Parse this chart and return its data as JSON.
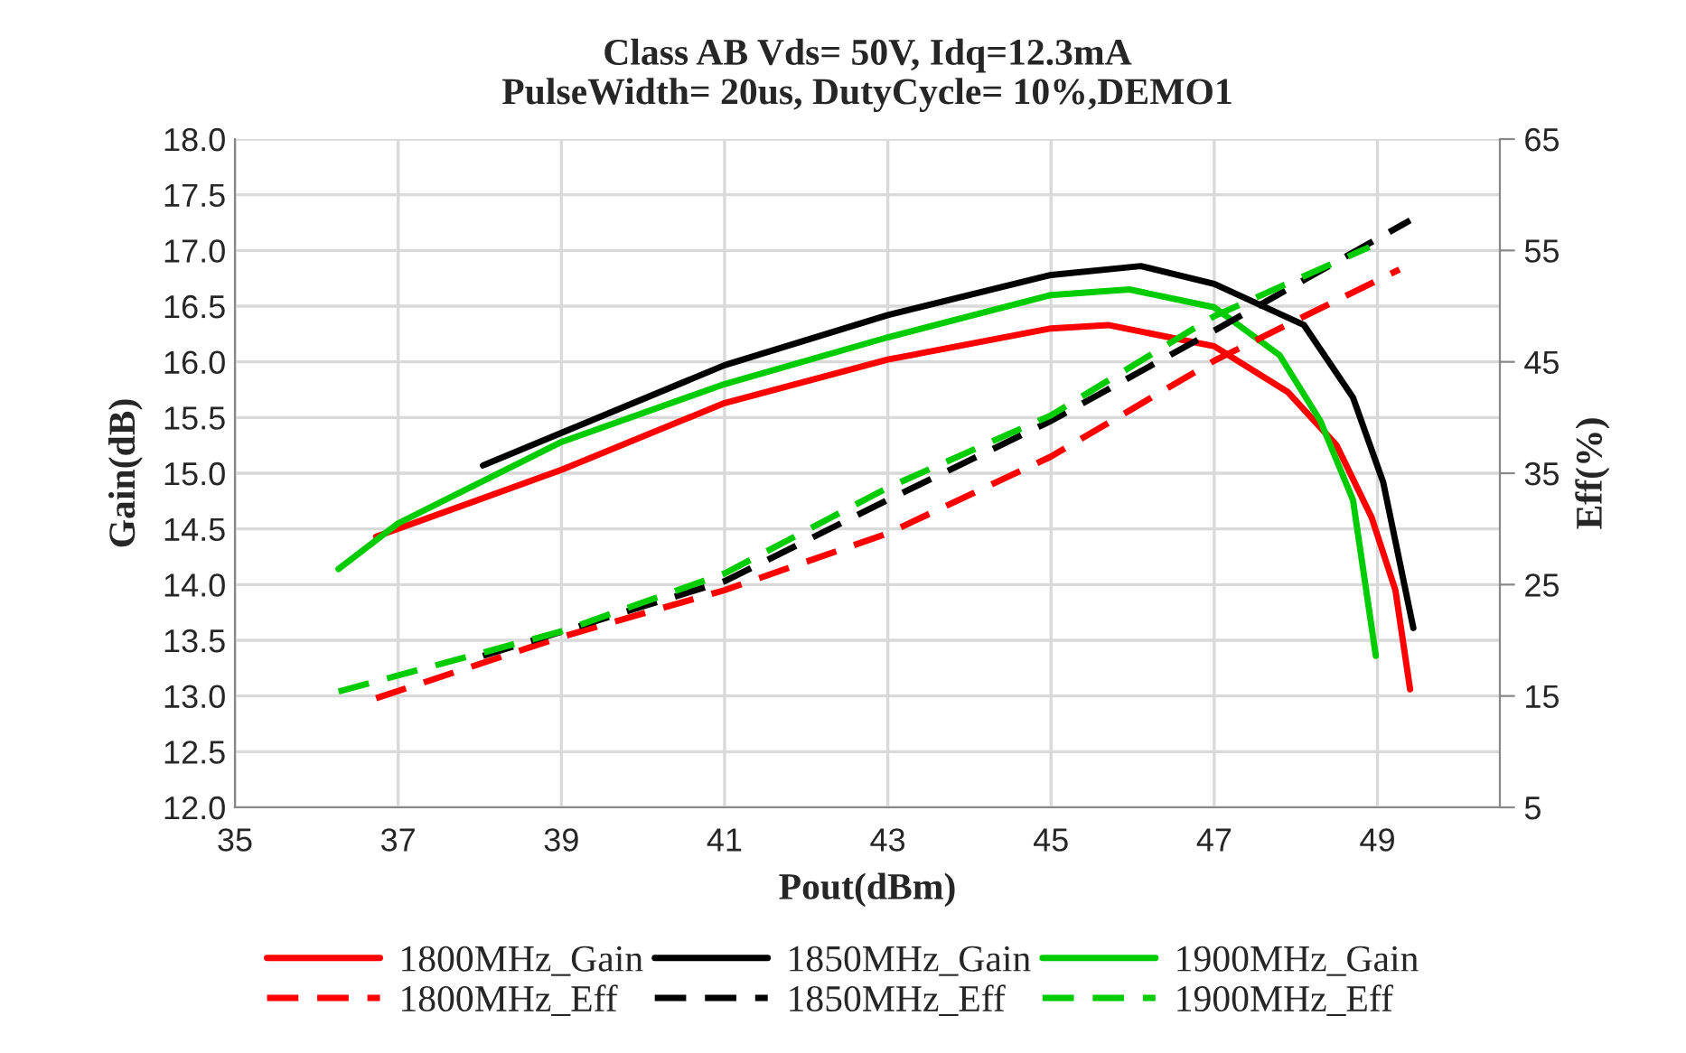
{
  "chart_data": {
    "type": "line",
    "title": "Class AB Vds= 50V, Idq=12.3mA\nPulseWidth= 20us, DutyCycle= 10%,DEMO1",
    "xlabel": "Pout(dBm)",
    "ylabel": "Gain(dB)",
    "y2label": "Eff(%)",
    "xlim": [
      35,
      50.5
    ],
    "xticks": [
      35,
      37,
      39,
      41,
      43,
      45,
      47,
      49
    ],
    "ylim": [
      12,
      18
    ],
    "yticks": [
      {
        "value": 12,
        "label": "12.0"
      },
      {
        "value": 12.5,
        "label": "12.5"
      },
      {
        "value": 13,
        "label": "13.0"
      },
      {
        "value": 13.5,
        "label": "13.5"
      },
      {
        "value": 14,
        "label": "14.0"
      },
      {
        "value": 14.5,
        "label": "14.5"
      },
      {
        "value": 15,
        "label": "15.0"
      },
      {
        "value": 15.5,
        "label": "15.5"
      },
      {
        "value": 16,
        "label": "16.0"
      },
      {
        "value": 16.5,
        "label": "16.5"
      },
      {
        "value": 17,
        "label": "17.0"
      },
      {
        "value": 17.5,
        "label": "17.5"
      },
      {
        "value": 18,
        "label": "18.0"
      }
    ],
    "y2lim": [
      5,
      65
    ],
    "y2ticks": [
      5,
      15,
      25,
      35,
      45,
      55,
      65
    ],
    "grid": true,
    "legend": "bottom",
    "series": [
      {
        "name": "1800MHz_Gain",
        "color": "#ff0000",
        "line_style": "solid",
        "x": [
          36.73,
          39,
          41,
          43,
          45,
          45.7,
          47,
          47.9,
          48.5,
          48.93,
          49.22,
          49.4
        ],
        "values": [
          14.43,
          15.03,
          15.63,
          16.02,
          16.3,
          16.33,
          16.14,
          15.73,
          15.25,
          14.6,
          13.95,
          13.06
        ]
      },
      {
        "name": "1850MHz_Gain",
        "color": "#000000",
        "line_style": "solid",
        "x": [
          38.04,
          41,
          43,
          45,
          46.1,
          47,
          48.1,
          48.7,
          49.07,
          49.44
        ],
        "values": [
          15.07,
          15.97,
          16.42,
          16.78,
          16.86,
          16.7,
          16.33,
          15.68,
          14.92,
          13.61
        ]
      },
      {
        "name": "1900MHz_Gain",
        "color": "#00cc00",
        "line_style": "solid",
        "x": [
          36.27,
          37,
          39,
          41,
          43,
          45,
          45.96,
          47,
          47.8,
          48.3,
          48.7,
          48.98
        ],
        "values": [
          14.14,
          14.55,
          15.28,
          15.8,
          16.22,
          16.6,
          16.65,
          16.49,
          16.06,
          15.47,
          14.76,
          13.36
        ]
      },
      {
        "name": "1800MHz_Eff",
        "color": "#ff0000",
        "line_style": "dashed",
        "axis": "y2",
        "x": [
          36.73,
          39,
          41,
          43,
          45,
          47,
          49.27
        ],
        "values": [
          14.8,
          20.3,
          24.5,
          29.6,
          36.5,
          45.1,
          53.3
        ]
      },
      {
        "name": "1850MHz_Eff",
        "color": "#000000",
        "line_style": "dashed",
        "axis": "y2",
        "x": [
          38.04,
          41,
          43,
          45,
          47,
          49.4
        ],
        "values": [
          18.6,
          25.3,
          32.6,
          39.7,
          47.8,
          57.7
        ]
      },
      {
        "name": "1900MHz_Eff",
        "color": "#00cc00",
        "line_style": "dashed",
        "axis": "y2",
        "x": [
          36.27,
          39,
          41,
          43,
          45,
          47,
          48.9
        ],
        "values": [
          15.4,
          20.8,
          26.0,
          33.7,
          40.2,
          49.1,
          55.3
        ]
      }
    ]
  }
}
